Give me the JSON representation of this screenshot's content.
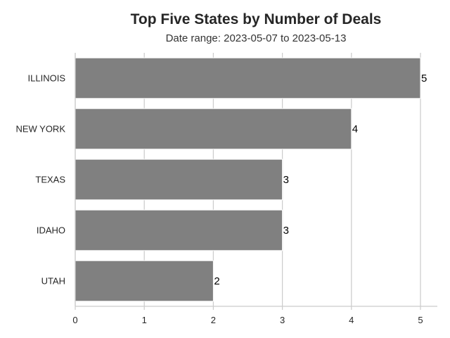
{
  "chart_data": {
    "type": "bar",
    "orientation": "horizontal",
    "title": "Top Five States by Number of Deals",
    "subtitle": "Date range: 2023-05-07 to 2023-05-13",
    "categories": [
      "ILLINOIS",
      "NEW YORK",
      "TEXAS",
      "IDAHO",
      "UTAH"
    ],
    "values": [
      5,
      4,
      3,
      3,
      2
    ],
    "data_labels": [
      "5",
      "4",
      "3",
      "3",
      "2"
    ],
    "xticks": [
      "0",
      "1",
      "2",
      "3",
      "4",
      "5"
    ],
    "xlim": [
      0,
      5.25
    ],
    "xlabel": "",
    "ylabel": "",
    "grid": "vertical",
    "legend": "none",
    "bar_color": "#808080",
    "grid_color": "#cccccc"
  }
}
